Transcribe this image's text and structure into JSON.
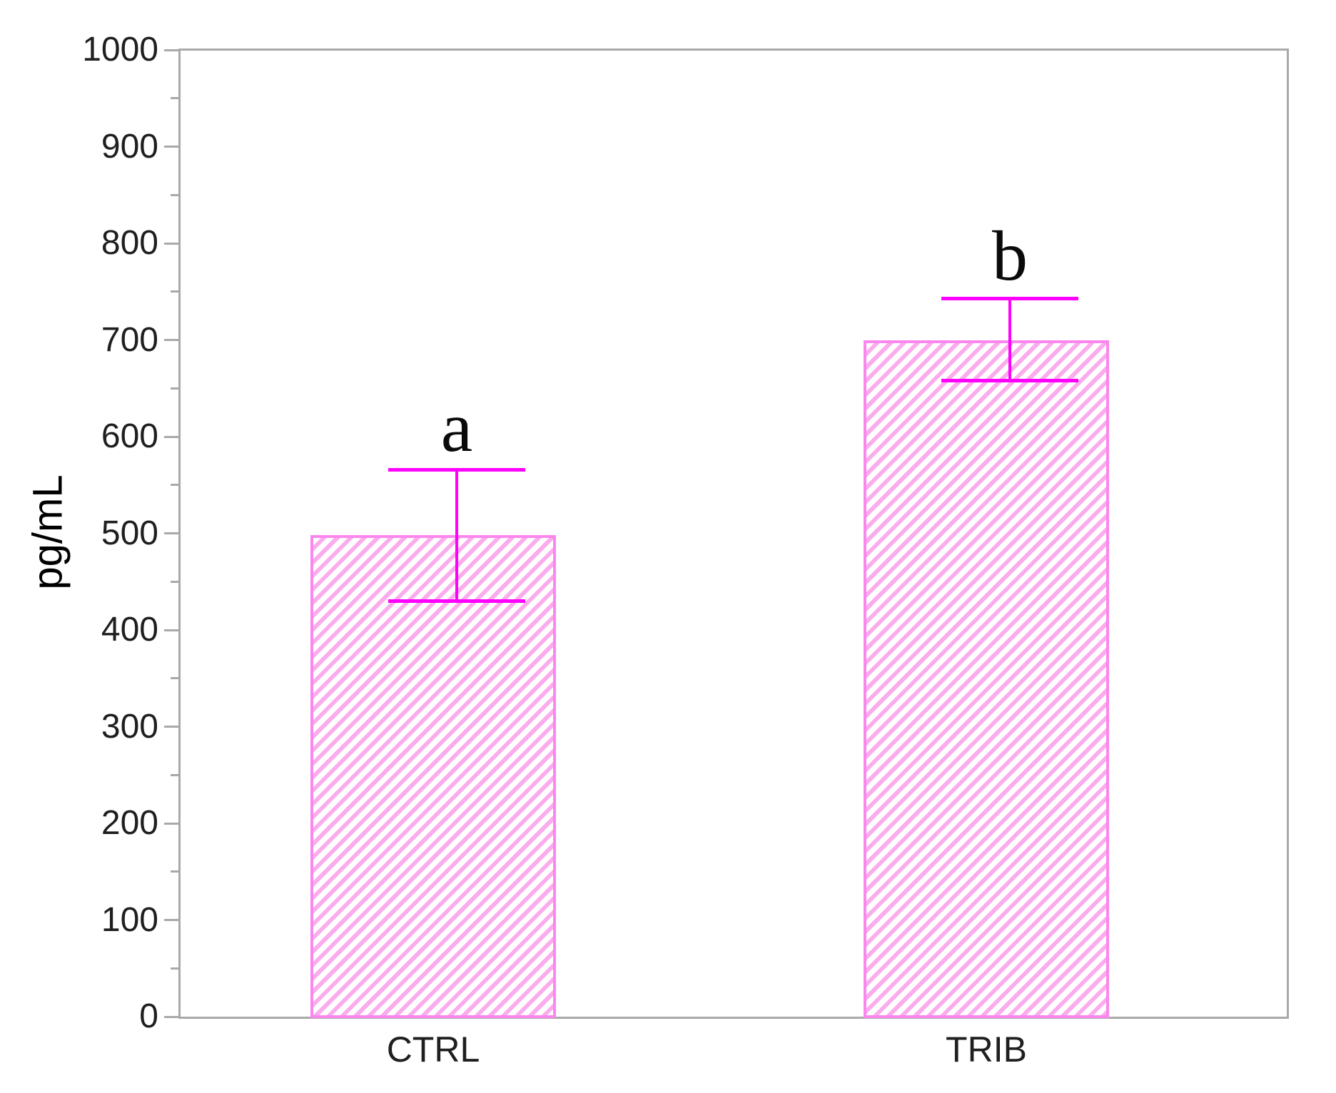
{
  "chart_data": {
    "type": "bar",
    "title": "",
    "ylabel": "pg/mL",
    "xlabel": "",
    "categories": [
      "CTRL",
      "TRIB"
    ],
    "values": [
      498,
      700
    ],
    "error_bars": [
      {
        "upper": 566,
        "lower": 430
      },
      {
        "upper": 743,
        "lower": 658
      }
    ],
    "sig_letters": [
      "a",
      "b"
    ],
    "ylim": [
      0,
      1000
    ],
    "ytick_major_step": 100,
    "ytick_minor_step": 50,
    "ytick_labels": [
      "0",
      "100",
      "200",
      "300",
      "400",
      "500",
      "600",
      "700",
      "800",
      "900",
      "1000"
    ],
    "grid": false,
    "legend": "none",
    "bar_hatch_style": "forward-diagonal",
    "colors": {
      "bar_fill": "#ffffff",
      "bar_hatch": "#fbaced",
      "bar_border": "#fb86ee",
      "error_bar": "#ff00ff",
      "axis_line": "#a9a9a9",
      "tick_label": "#1f1f1f",
      "axis_title": "#000000",
      "category_label": "#1f1f1f",
      "letter": "#0a0a0a"
    }
  }
}
